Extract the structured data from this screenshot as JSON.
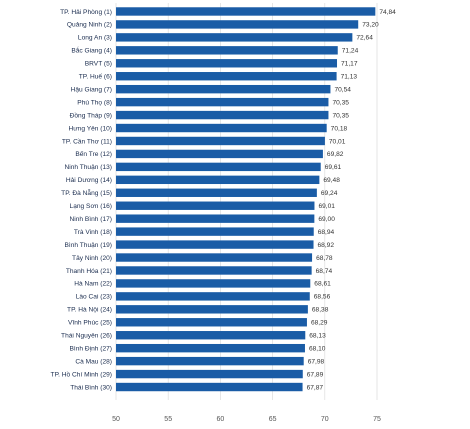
{
  "chart_data": {
    "type": "bar",
    "orientation": "horizontal",
    "color": "#1a5ca6",
    "grid": true,
    "xlim": [
      50,
      75
    ],
    "xticks": [
      "50",
      "55",
      "60",
      "65",
      "70",
      "75"
    ],
    "categories": [
      "TP. Hải Phòng (1)",
      "Quảng Ninh (2)",
      "Long An (3)",
      "Bắc Giang (4)",
      "BRVT (5)",
      "TP. Huế (6)",
      "Hậu Giang (7)",
      "Phú Thọ (8)",
      "Đồng Tháp (9)",
      "Hưng Yên (10)",
      "TP. Cần Thơ (11)",
      "Bến Tre (12)",
      "Ninh Thuận (13)",
      "Hải Dương (14)",
      "TP. Đà Nẵng (15)",
      "Lạng Sơn (16)",
      "Ninh Bình (17)",
      "Trà Vinh (18)",
      "Bình Thuận (19)",
      "Tây Ninh (20)",
      "Thanh Hóa (21)",
      "Hà Nam (22)",
      "Lào Cai (23)",
      "TP. Hà Nội (24)",
      "Vĩnh Phúc (25)",
      "Thái Nguyên (26)",
      "Bình Định (27)",
      "Cà Mau (28)",
      "TP. Hồ Chí Minh (29)",
      "Thái Bình (30)"
    ],
    "values": [
      74.84,
      73.2,
      72.64,
      71.24,
      71.17,
      71.13,
      70.54,
      70.35,
      70.35,
      70.18,
      70.01,
      69.82,
      69.61,
      69.48,
      69.24,
      69.01,
      69.0,
      68.94,
      68.92,
      68.78,
      68.74,
      68.61,
      68.56,
      68.38,
      68.29,
      68.13,
      68.1,
      67.98,
      67.89,
      67.87
    ],
    "value_labels": [
      "74,84",
      "73,20",
      "72,64",
      "71,24",
      "71,17",
      "71,13",
      "70,54",
      "70,35",
      "70,35",
      "70,18",
      "70,01",
      "69,82",
      "69,61",
      "69,48",
      "69,24",
      "69,01",
      "69,00",
      "68,94",
      "68,92",
      "68,78",
      "68,74",
      "68,61",
      "68,56",
      "68,38",
      "68,29",
      "68,13",
      "68,10",
      "67,98",
      "67,89",
      "67,87"
    ]
  }
}
